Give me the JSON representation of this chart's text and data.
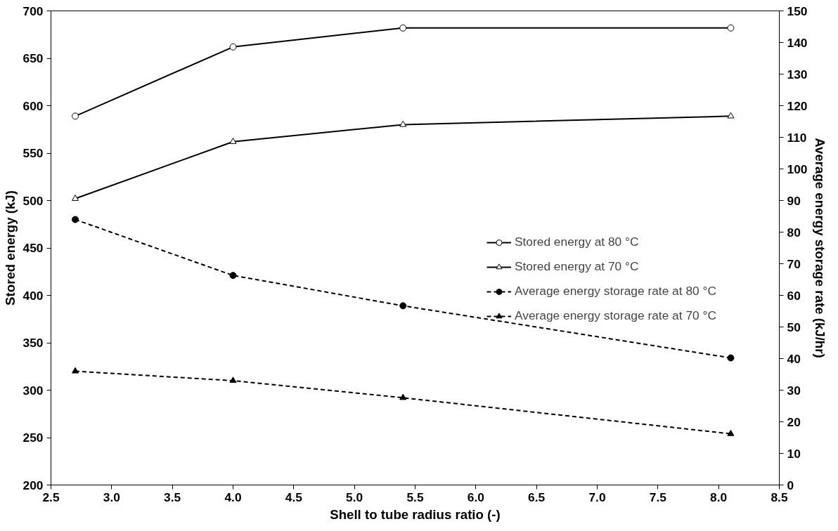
{
  "chart_data": {
    "type": "line",
    "xlabel": "Shell to tube radius ratio (-)",
    "ylabel": "Stored energy (kJ)",
    "y2label": "Average energy storage rate (kJ/hr)",
    "x": [
      2.7,
      4.0,
      5.4,
      8.1
    ],
    "series": [
      {
        "name": "Stored energy at 80 °C",
        "color": "#000000",
        "values": [
          589,
          662,
          682,
          682
        ],
        "marker": "circle",
        "line_style": "solid"
      },
      {
        "name": "Stored energy at 70 °C",
        "color": "#000000",
        "values": [
          502,
          562,
          580,
          589
        ],
        "marker": "triangle",
        "line_style": "solid"
      },
      {
        "name": "Average energy storage rate at 80 °C",
        "color": "#000000",
        "values": [
          84,
          66.3,
          56.7,
          40.2
        ],
        "marker": "circle",
        "line_style": "dashed",
        "axis": "y2"
      },
      {
        "name": "Average energy storage rate at 70 °C",
        "color": "#000000",
        "values": [
          36,
          33,
          27.6,
          16.2
        ],
        "marker": "triangle",
        "line_style": "dashed",
        "axis": "y2"
      }
    ],
    "xlim": [
      2.5,
      8.5
    ],
    "xticks": [
      {
        "value": 2.5,
        "label": "2.5"
      },
      {
        "value": 3,
        "label": "3.0"
      },
      {
        "value": 3.5,
        "label": "3.5"
      },
      {
        "value": 4,
        "label": "4.0"
      },
      {
        "value": 4.5,
        "label": "4.5"
      },
      {
        "value": 5,
        "label": "5.0"
      },
      {
        "value": 5.5,
        "label": "5.5"
      },
      {
        "value": 6,
        "label": "6.0"
      },
      {
        "value": 6.5,
        "label": "6.5"
      },
      {
        "value": 7,
        "label": "7.0"
      },
      {
        "value": 7.5,
        "label": "7.5"
      },
      {
        "value": 8,
        "label": "8.0"
      },
      {
        "value": 8.5,
        "label": "8.5"
      }
    ],
    "ylim": [
      200,
      700
    ],
    "yticks": [
      200,
      250,
      300,
      350,
      400,
      450,
      500,
      550,
      600,
      650,
      700
    ],
    "y2lim": [
      0,
      150
    ],
    "y2ticks": [
      0,
      10,
      20,
      30,
      40,
      50,
      60,
      70,
      80,
      90,
      100,
      110,
      120,
      130,
      140,
      150
    ],
    "grid": false,
    "legend": "right"
  }
}
